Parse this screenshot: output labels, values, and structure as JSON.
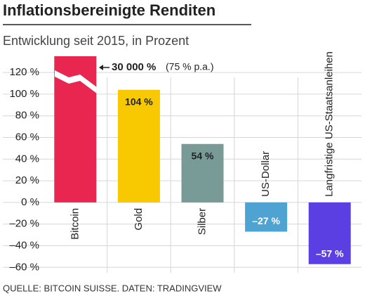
{
  "chart_data": {
    "type": "bar",
    "title": "Inflationsbereinigte Renditen",
    "subtitle": "Entwicklung seit 2015, in Prozent",
    "categories": [
      "Bitcoin",
      "Gold",
      "Silber",
      "US-Dollar",
      "Langfristige US-Staatsanleihen"
    ],
    "values": [
      30000,
      104,
      54,
      -27,
      -57
    ],
    "value_labels": [
      "30 000 %",
      "104 %",
      "54 %",
      "–27 %",
      "–57 %"
    ],
    "colors": [
      "#e8264f",
      "#f8c800",
      "#789b97",
      "#4ea3d3",
      "#5c3fe2"
    ],
    "annotation": "(75 % p.a.)",
    "ylim": [
      -65,
      135
    ],
    "yticks": [
      {
        "value": -60,
        "label": "–60 %"
      },
      {
        "value": -40,
        "label": "–40 %"
      },
      {
        "value": -20,
        "label": "–20 %"
      },
      {
        "value": 0,
        "label": "0 %"
      },
      {
        "value": 20,
        "label": "20 %"
      },
      {
        "value": 40,
        "label": "40 %"
      },
      {
        "value": 60,
        "label": "60 %"
      },
      {
        "value": 80,
        "label": "80 %"
      },
      {
        "value": 100,
        "label": "100 %"
      },
      {
        "value": 120,
        "label": "120 %"
      }
    ],
    "grid": true,
    "source": "QUELLE: BITCOIN SUISSE. DATEN: TRADINGVIEW"
  }
}
